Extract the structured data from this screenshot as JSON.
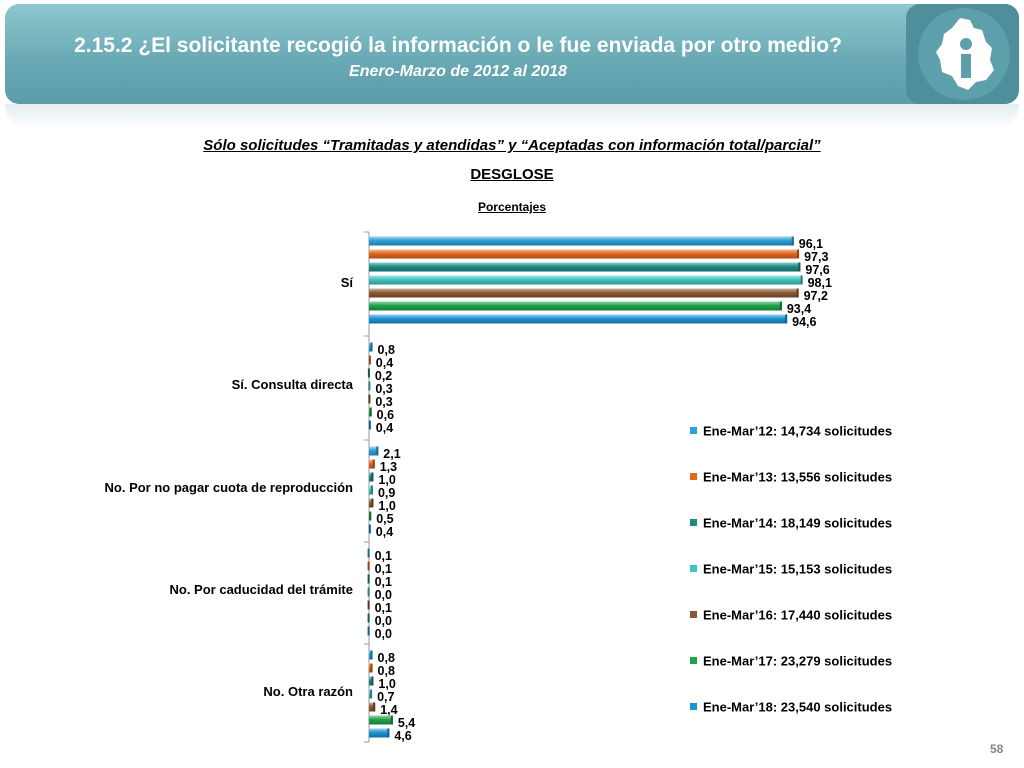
{
  "slide": {
    "title": "2.15.2 ¿El solicitante recogió la información o le fue enviada por otro medio?",
    "subtitle": "Enero-Marzo de 2012 al 2018",
    "chart_subtitle": "Sólo solicitudes “Tramitadas y atendidas” y “Aceptadas con información total/parcial”",
    "section": "DESGLOSE",
    "unit_label": "Porcentajes",
    "page_number": "58",
    "logo_icon": "cdmx-map-info-icon"
  },
  "chart_data": {
    "type": "bar",
    "orientation": "horizontal",
    "categories": [
      "Sí",
      "Sí. Consulta directa",
      "No. Por no pagar cuota de reproducción",
      "No. Por caducidad del trámite",
      "No. Otra razón"
    ],
    "series": [
      {
        "name": "Ene-Mar’12: 14,734 solicitudes",
        "color": "#2aa1d8",
        "values": [
          96.1,
          0.8,
          2.1,
          0.1,
          0.8
        ],
        "labels": [
          "96,1",
          "0,8",
          "2,1",
          "0,1",
          "0,8"
        ]
      },
      {
        "name": "Ene-Mar’13: 13,556 solicitudes",
        "color": "#e0681f",
        "values": [
          97.3,
          0.4,
          1.3,
          0.1,
          0.8
        ],
        "labels": [
          "97,3",
          "0,4",
          "1,3",
          "0,1",
          "0,8"
        ]
      },
      {
        "name": "Ene-Mar’14: 18,149 solicitudes",
        "color": "#1d8a86",
        "values": [
          97.6,
          0.2,
          1.0,
          0.1,
          1.0
        ],
        "labels": [
          "97,6",
          "0,2",
          "1,0",
          "0,1",
          "1,0"
        ]
      },
      {
        "name": "Ene-Mar’15: 15,153 solicitudes",
        "color": "#3ec3c0",
        "values": [
          98.1,
          0.3,
          0.9,
          0.0,
          0.7
        ],
        "labels": [
          "98,1",
          "0,3",
          "0,9",
          "0,0",
          "0,7"
        ]
      },
      {
        "name": "Ene-Mar’16: 17,440 solicitudes",
        "color": "#8a5a32",
        "values": [
          97.2,
          0.3,
          1.0,
          0.1,
          1.4
        ],
        "labels": [
          "97,2",
          "0,3",
          "1,0",
          "0,1",
          "1,4"
        ]
      },
      {
        "name": "Ene-Mar’17: 23,279 solicitudes",
        "color": "#1fa24a",
        "values": [
          93.4,
          0.6,
          0.5,
          0.0,
          5.4
        ],
        "labels": [
          "93,4",
          "0,6",
          "0,5",
          "0,0",
          "5,4"
        ]
      },
      {
        "name": "Ene-Mar’18: 23,540 solicitudes",
        "color": "#1b93d2",
        "values": [
          94.6,
          0.4,
          0.4,
          0.0,
          4.6
        ],
        "labels": [
          "94,6",
          "0,4",
          "0,4",
          "0,0",
          "4,6"
        ]
      }
    ],
    "xlim": [
      0,
      100
    ],
    "grid": false,
    "legend_position": "right"
  }
}
